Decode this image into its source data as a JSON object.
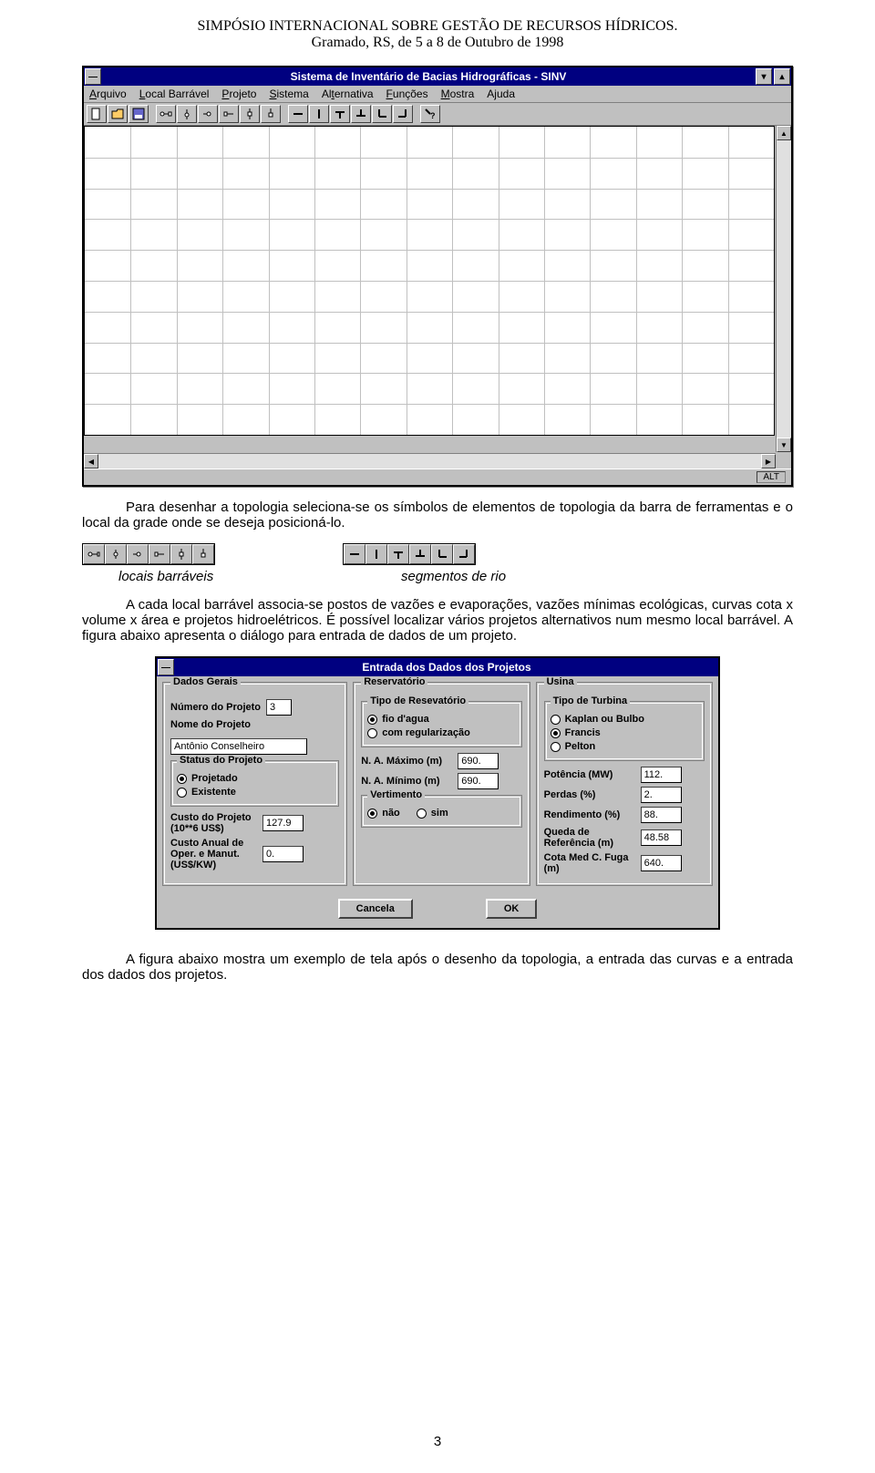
{
  "header": {
    "title": "SIMPÓSIO INTERNACIONAL SOBRE GESTÃO DE RECURSOS HÍDRICOS.",
    "subtitle": "Gramado, RS, de 5 a 8 de Outubro de 1998"
  },
  "app_window": {
    "title": "Sistema de Inventário de Bacias Hidrográficas - SINV",
    "menu": [
      "Arquivo",
      "Local Barrável",
      "Projeto",
      "Sistema",
      "Alternativa",
      "Funções",
      "Mostra",
      "Ajuda"
    ],
    "status": "ALT",
    "grid": {
      "cols": 15,
      "rows": 10,
      "bg": "#ffffff",
      "line": "#c0c0c0"
    }
  },
  "para1": "Para desenhar a topologia seleciona-se os símbolos de elementos de topologia da barra de ferramentas e o local da grade onde se deseja posicioná-lo.",
  "palette_labels": {
    "left": "locais barráveis",
    "right": "segmentos de rio"
  },
  "para2": "A cada local barrável associa-se postos de vazões e evaporações, vazões mínimas ecológicas, curvas cota x volume x área e projetos hidroelétricos. É possível localizar vários projetos alternativos num mesmo local barrável. A figura  abaixo apresenta o diálogo para entrada de dados de um projeto.",
  "dialog": {
    "title": "Entrada dos Dados dos Projetos",
    "groups": {
      "dados_gerais": {
        "title": "Dados Gerais",
        "numero_label": "Número do Projeto",
        "numero_value": "3",
        "nome_label": "Nome do Projeto",
        "nome_value": "Antônio Conselheiro",
        "status": {
          "title": "Status do Projeto",
          "options": [
            "Projetado",
            "Existente"
          ],
          "selected": 0
        },
        "custo_proj_label": "Custo do Projeto (10**6 US$)",
        "custo_proj_value": "127.9",
        "custo_anual_label": "Custo Anual de Oper. e Manut. (US$/KW)",
        "custo_anual_value": "0."
      },
      "reservatorio": {
        "title": "Reservatório",
        "tipo": {
          "title": "Tipo de Resevatório",
          "options": [
            "fio d'agua",
            "com regularização"
          ],
          "selected": 0
        },
        "na_max_label": "N. A. Máximo (m)",
        "na_max_value": "690.",
        "na_min_label": "N. A. Mínimo (m)",
        "na_min_value": "690.",
        "vertimento": {
          "title": "Vertimento",
          "options": [
            "não",
            "sim"
          ],
          "selected": 0
        }
      },
      "usina": {
        "title": "Usina",
        "tipo_turbina": {
          "title": "Tipo de Turbina",
          "options": [
            "Kaplan ou Bulbo",
            "Francis",
            "Pelton"
          ],
          "selected": 1
        },
        "potencia_label": "Potência (MW)",
        "potencia_value": "112.",
        "perdas_label": "Perdas (%)",
        "perdas_value": "2.",
        "rendimento_label": "Rendimento (%)",
        "rendimento_value": "88.",
        "queda_label": "Queda de Referência (m)",
        "queda_value": "48.58",
        "cota_label": "Cota Med C. Fuga (m)",
        "cota_value": "640."
      }
    },
    "buttons": {
      "cancel": "Cancela",
      "ok": "OK"
    }
  },
  "para3": "A figura abaixo mostra um exemplo de tela após o desenho da topologia, a entrada das curvas e a entrada dos dados dos projetos.",
  "page_number": "3",
  "colors": {
    "page_bg": "#ffffff",
    "win_bg": "#c0c0c0",
    "titlebar_bg": "#000080",
    "titlebar_fg": "#ffffff"
  }
}
